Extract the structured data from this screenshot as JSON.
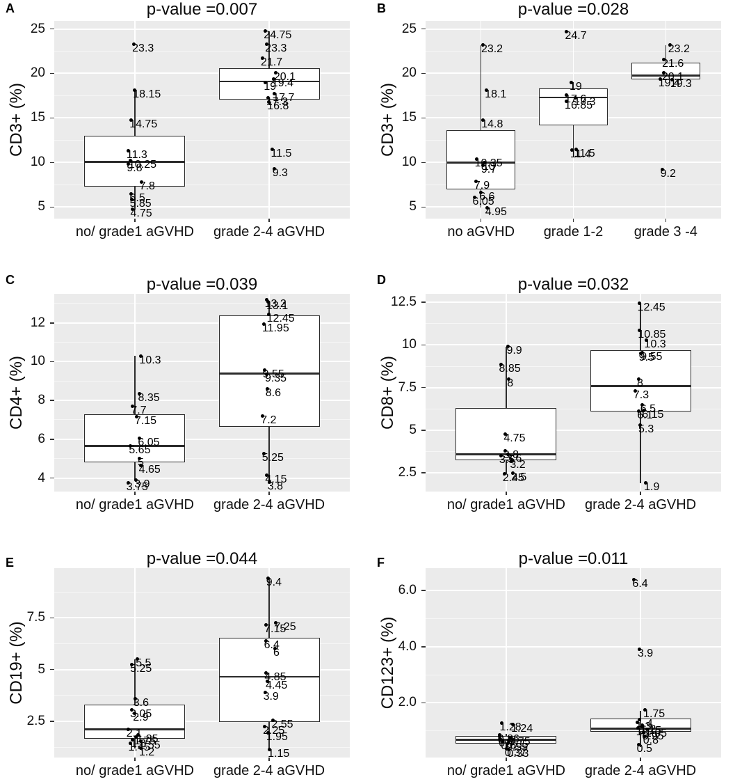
{
  "figure": {
    "description": "Six-panel boxplot figure with jittered data points comparing lymphocyte subsets (%) between acute GVHD severity groups",
    "panel_ids": [
      "A",
      "B",
      "C",
      "D",
      "E",
      "F"
    ]
  },
  "colors": {
    "background": "#ffffff",
    "plot_bg": "#ebebeb",
    "grid_major": "#ffffff",
    "grid_minor": "#f6f6f6",
    "stroke": "#2b2b2b",
    "box_fill": "#ffffff",
    "point": "#000000",
    "text": "#000000"
  },
  "chart_data": [
    {
      "id": "A",
      "type": "boxplot",
      "title": "p-value =0.007",
      "ylabel": "CD3+ (%)",
      "yticks": [
        5,
        10,
        15,
        20,
        25
      ],
      "ytick_labels": [
        "5",
        "10",
        "15",
        "20",
        "25"
      ],
      "ylim": [
        3.7,
        25.9
      ],
      "grid": true,
      "groups": [
        {
          "label": "no/ grade1 aGVHD",
          "box": {
            "q1": 7.3,
            "median": 10.1,
            "q3": 13.0,
            "whisker_low": 4.75,
            "whisker_high": 18.2
          },
          "points": [
            23.3,
            18.15,
            14.75,
            11.3,
            10.25,
            9.8,
            7.8,
            6.5,
            5.85,
            4.75
          ]
        },
        {
          "label": "grade 2-4 aGVHD",
          "box": {
            "q1": 17.1,
            "median": 19.1,
            "q3": 20.55,
            "whisker_low": 16.8,
            "whisker_high": 24.75
          },
          "points": [
            24.75,
            23.3,
            21.7,
            20.1,
            19.4,
            19.0,
            17.7,
            17.3,
            16.8,
            11.5,
            9.3
          ]
        }
      ]
    },
    {
      "id": "B",
      "type": "boxplot",
      "title": "p-value =0.028",
      "ylabel": "CD3+ (%)",
      "yticks": [
        5,
        10,
        15,
        20,
        25
      ],
      "ytick_labels": [
        "5",
        "10",
        "15",
        "20",
        "25"
      ],
      "ylim": [
        3.7,
        25.9
      ],
      "grid": true,
      "groups": [
        {
          "label": "no aGVHD",
          "box": {
            "q1": 7.0,
            "median": 10.0,
            "q3": 13.65,
            "whisker_low": 4.95,
            "whisker_high": 23.2
          },
          "points": [
            23.2,
            18.1,
            14.8,
            10.35,
            10.0,
            9.7,
            7.9,
            6.6,
            6.05,
            4.95
          ]
        },
        {
          "label": "grade 1-2",
          "box": {
            "q1": 14.2,
            "median": 17.3,
            "q3": 18.35,
            "whisker_low": 11.4,
            "whisker_high": 19.0
          },
          "points": [
            24.7,
            19.0,
            17.6,
            17.3,
            16.85,
            11.5,
            11.4
          ]
        },
        {
          "label": "grade 3 -4",
          "box": {
            "q1": 19.3,
            "median": 19.75,
            "q3": 21.2,
            "whisker_low": 19.3,
            "whisker_high": 23.2
          },
          "points": [
            23.2,
            21.6,
            20.1,
            19.4,
            19.3,
            9.2
          ]
        }
      ]
    },
    {
      "id": "C",
      "type": "boxplot",
      "title": "p-value =0.039",
      "ylabel": "CD4+ (%)",
      "yticks": [
        4,
        6,
        8,
        10,
        12
      ],
      "ytick_labels": [
        "4",
        "6",
        "8",
        "10",
        "12"
      ],
      "ylim": [
        3.3,
        13.5
      ],
      "grid": true,
      "groups": [
        {
          "label": "no/ grade1 aGVHD",
          "box": {
            "q1": 4.8,
            "median": 5.65,
            "q3": 7.3,
            "whisker_low": 3.9,
            "whisker_high": 10.3
          },
          "points": [
            10.3,
            8.35,
            7.7,
            7.15,
            6.05,
            5.65,
            5.0,
            4.65,
            3.9,
            3.75
          ]
        },
        {
          "label": "grade 2-4 aGVHD",
          "box": {
            "q1": 6.65,
            "median": 9.4,
            "q3": 12.4,
            "whisker_low": 3.75,
            "whisker_high": 13.15
          },
          "points": [
            13.2,
            13.1,
            12.45,
            11.95,
            9.55,
            9.35,
            8.6,
            7.2,
            5.25,
            4.15,
            3.8
          ]
        }
      ]
    },
    {
      "id": "D",
      "type": "boxplot",
      "title": "p-value =0.032",
      "ylabel": "CD8+ (%)",
      "yticks": [
        2.5,
        5,
        7.5,
        10,
        12.5
      ],
      "ytick_labels": [
        "2.5",
        "5",
        "7.5",
        "10",
        "12.5"
      ],
      "ylim": [
        1.4,
        13.0
      ],
      "grid": true,
      "groups": [
        {
          "label": "no/ grade1 aGVHD",
          "box": {
            "q1": 3.25,
            "median": 3.6,
            "q3": 6.3,
            "whisker_low": 2.45,
            "whisker_high": 9.9
          },
          "points": [
            9.9,
            8.85,
            8.0,
            4.75,
            3.8,
            3.6,
            3.5,
            3.2,
            2.5,
            2.45
          ]
        },
        {
          "label": "grade 2-4 aGVHD",
          "box": {
            "q1": 6.1,
            "median": 7.6,
            "q3": 9.7,
            "whisker_low": 1.9,
            "whisker_high": 12.45
          },
          "points": [
            12.45,
            10.85,
            10.3,
            9.55,
            9.5,
            8.0,
            7.3,
            6.5,
            6.15,
            6.1,
            5.3,
            1.9
          ]
        }
      ]
    },
    {
      "id": "E",
      "type": "boxplot",
      "title": "p-value =0.044",
      "ylabel": "CD19+ (%)",
      "yticks": [
        2.5,
        5,
        7.5
      ],
      "ytick_labels": [
        "2.5",
        "5",
        "7.5"
      ],
      "ylim": [
        0.75,
        9.9
      ],
      "grid": true,
      "groups": [
        {
          "label": "no/ grade1 aGVHD",
          "box": {
            "q1": 1.65,
            "median": 2.1,
            "q3": 3.3,
            "whisker_low": 1.2,
            "whisker_high": 5.5
          },
          "points": [
            5.5,
            5.25,
            3.6,
            3.05,
            2.9,
            2.1,
            1.85,
            1.75,
            1.6,
            1.55,
            1.45,
            1.2
          ]
        },
        {
          "label": "grade 2-4 aGVHD",
          "box": {
            "q1": 2.45,
            "median": 4.65,
            "q3": 6.55,
            "whisker_low": 1.15,
            "whisker_high": 9.4
          },
          "points": [
            9.4,
            7.25,
            7.15,
            6.4,
            6.0,
            4.85,
            4.45,
            3.9,
            2.55,
            2.25,
            1.95,
            1.15
          ]
        }
      ]
    },
    {
      "id": "F",
      "type": "boxplot",
      "title": "p-value =0.011",
      "ylabel": "CD123+ (%)",
      "yticks": [
        2,
        4,
        6
      ],
      "ytick_labels": [
        "2.0",
        "4.0",
        "6.0"
      ],
      "ylim": [
        0.05,
        6.8
      ],
      "grid": true,
      "groups": [
        {
          "label": "no/ grade1 aGVHD",
          "box": {
            "q1": 0.55,
            "median": 0.68,
            "q3": 0.82,
            "whisker_low": 0.35,
            "whisker_high": 0.9
          },
          "points": [
            1.28,
            1.24,
            0.86,
            0.8,
            0.75,
            0.7,
            0.65,
            0.6,
            0.55,
            0.37,
            0.33
          ]
        },
        {
          "label": "grade 2-4 aGVHD",
          "box": {
            "q1": 0.97,
            "median": 1.08,
            "q3": 1.45,
            "whisker_low": 0.42,
            "whisker_high": 1.72
          },
          "points": [
            6.4,
            3.9,
            1.75,
            1.4,
            1.3,
            1.2,
            1.15,
            1.1,
            1.05,
            0.95,
            0.8,
            0.5
          ]
        }
      ]
    }
  ]
}
